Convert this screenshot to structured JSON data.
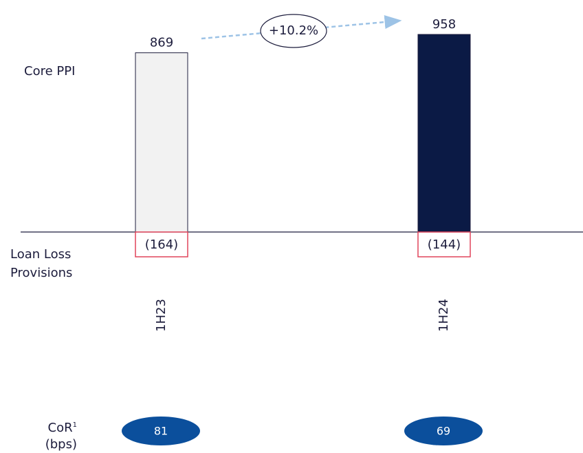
{
  "chart_data": {
    "type": "bar",
    "categories": [
      "1H23",
      "1H24"
    ],
    "series": [
      {
        "name": "Core PPI",
        "values": [
          869,
          958
        ],
        "colors": [
          "#f2f2f2",
          "#0b1a45"
        ]
      },
      {
        "name": "Loan Loss Provisions",
        "values": [
          -164,
          -144
        ],
        "value_labels": [
          "(164)",
          "(144)"
        ],
        "color": "#e0445a"
      }
    ],
    "annotation": "+10.2%",
    "arrow_color": "#9dc3e6",
    "cor": {
      "label": "CoR",
      "superscript": "1",
      "unit": "(bps)",
      "values": [
        81,
        69
      ],
      "color": "#0b4f9c"
    }
  }
}
